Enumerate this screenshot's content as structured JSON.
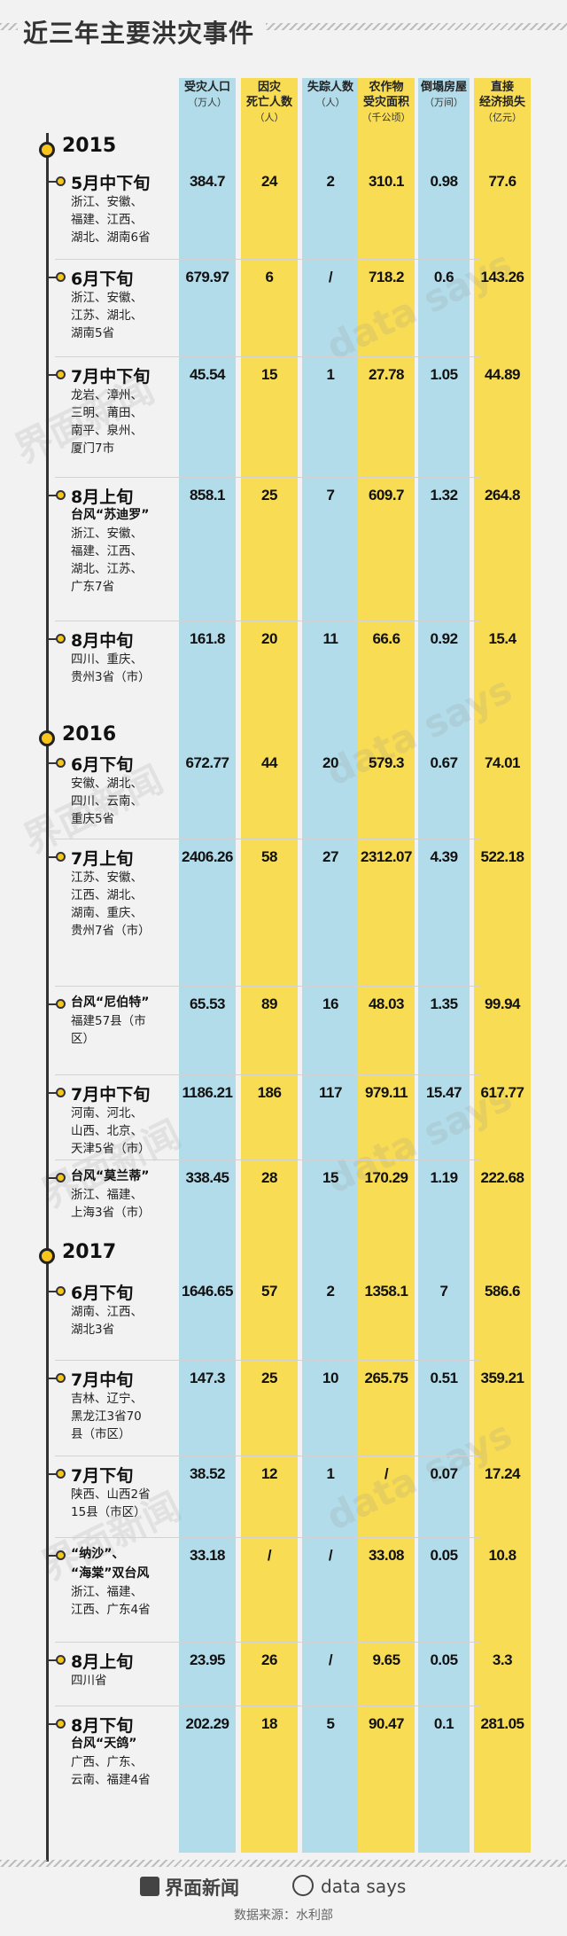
{
  "title": "近三年主要洪灾事件",
  "headers": [
    {
      "line1": "受灾人口",
      "line2": "",
      "unit": "（万人）"
    },
    {
      "line1": "因灾",
      "line2": "死亡人数",
      "unit": "（人）"
    },
    {
      "line1": "失踪人数",
      "line2": "",
      "unit": "（人）"
    },
    {
      "line1": "农作物",
      "line2": "受灾面积",
      "unit": "（千公顷）"
    },
    {
      "line1": "倒塌房屋",
      "line2": "",
      "unit": "（万间）"
    },
    {
      "line1": "直接",
      "line2": "经济损失",
      "unit": "（亿元）"
    }
  ],
  "years": [
    "2015",
    "2016",
    "2017"
  ],
  "events": [
    {
      "year": "2015",
      "title": "5月中下旬",
      "subtitle": "",
      "region": "浙江、安徽、\n福建、江西、\n湖北、湖南6省",
      "values": [
        "384.7",
        "24",
        "2",
        "310.1",
        "0.98",
        "77.6"
      ]
    },
    {
      "year": "2015",
      "title": "6月下旬",
      "subtitle": "",
      "region": "浙江、安徽、\n江苏、湖北、\n湖南5省",
      "values": [
        "679.97",
        "6",
        "/",
        "718.2",
        "0.6",
        "143.26"
      ]
    },
    {
      "year": "2015",
      "title": "7月中下旬",
      "subtitle": "",
      "region": "龙岩、漳州、\n三明、莆田、\n南平、泉州、\n厦门7市",
      "values": [
        "45.54",
        "15",
        "1",
        "27.78",
        "1.05",
        "44.89"
      ]
    },
    {
      "year": "2015",
      "title": "8月上旬",
      "subtitle": "台风“苏迪罗”",
      "region": "浙江、安徽、\n福建、江西、\n湖北、江苏、\n广东7省",
      "values": [
        "858.1",
        "25",
        "7",
        "609.7",
        "1.32",
        "264.8"
      ]
    },
    {
      "year": "2015",
      "title": "8月中旬",
      "subtitle": "",
      "region": "四川、重庆、\n贵州3省（市）",
      "values": [
        "161.8",
        "20",
        "11",
        "66.6",
        "0.92",
        "15.4"
      ]
    },
    {
      "year": "2016",
      "title": "6月下旬",
      "subtitle": "",
      "region": "安徽、湖北、\n四川、云南、\n重庆5省",
      "values": [
        "672.77",
        "44",
        "20",
        "579.3",
        "0.67",
        "74.01"
      ]
    },
    {
      "year": "2016",
      "title": "7月上旬",
      "subtitle": "",
      "region": "江苏、安徽、\n江西、湖北、\n湖南、重庆、\n贵州7省（市）",
      "values": [
        "2406.26",
        "58",
        "27",
        "2312.07",
        "4.39",
        "522.18"
      ]
    },
    {
      "year": "2016",
      "title": "",
      "subtitle": "台风“尼伯特”",
      "region": "福建57县（市\n区）",
      "values": [
        "65.53",
        "89",
        "16",
        "48.03",
        "1.35",
        "99.94"
      ]
    },
    {
      "year": "2016",
      "title": "7月中下旬",
      "subtitle": "",
      "region": "河南、河北、\n山西、北京、\n天津5省（市）",
      "values": [
        "1186.21",
        "186",
        "117",
        "979.11",
        "15.47",
        "617.77"
      ]
    },
    {
      "year": "2016",
      "title": "",
      "subtitle": "台风“莫兰蒂”",
      "region": "浙江、福建、\n上海3省（市）",
      "values": [
        "338.45",
        "28",
        "15",
        "170.29",
        "1.19",
        "222.68"
      ]
    },
    {
      "year": "2017",
      "title": "6月下旬",
      "subtitle": "",
      "region": "湖南、江西、\n湖北3省",
      "values": [
        "1646.65",
        "57",
        "2",
        "1358.1",
        "7",
        "586.6"
      ]
    },
    {
      "year": "2017",
      "title": "7月中旬",
      "subtitle": "",
      "region": "吉林、辽宁、\n黑龙江3省70\n县（市区）",
      "values": [
        "147.3",
        "25",
        "10",
        "265.75",
        "0.51",
        "359.21"
      ]
    },
    {
      "year": "2017",
      "title": "7月下旬",
      "subtitle": "",
      "region": "陕西、山西2省\n15县（市区）",
      "values": [
        "38.52",
        "12",
        "1",
        "/",
        "0.07",
        "17.24"
      ]
    },
    {
      "year": "2017",
      "title": "",
      "subtitle": "“纳沙”、\n“海棠”双台风",
      "region": "浙江、福建、\n江西、广东4省",
      "values": [
        "33.18",
        "/",
        "/",
        "33.08",
        "0.05",
        "10.8"
      ]
    },
    {
      "year": "2017",
      "title": "8月上旬",
      "subtitle": "",
      "region": "四川省",
      "values": [
        "23.95",
        "26",
        "/",
        "9.65",
        "0.05",
        "3.3"
      ]
    },
    {
      "year": "2017",
      "title": "8月下旬",
      "subtitle": "台风“天鸽”",
      "region": "广西、广东、\n云南、福建4省",
      "values": [
        "202.29",
        "18",
        "5",
        "90.47",
        "0.1",
        "281.05"
      ]
    }
  ],
  "watermark_logo": "界面新闻",
  "watermark_ds": "data says",
  "footer": {
    "logo1": "界面新闻",
    "logo2": "data says",
    "source": "数据来源：水利部"
  },
  "colors": {
    "blue_column": "#b3dcea",
    "yellow_column": "#f8dc53",
    "dot": "#f8c51c",
    "line": "#333333"
  },
  "chart_data": {
    "type": "table",
    "title": "近三年主要洪灾事件",
    "columns": [
      "受灾人口（万人）",
      "因灾死亡人数（人）",
      "失踪人数（人）",
      "农作物受灾面积（千公顷）",
      "倒塌房屋（万间）",
      "直接经济损失（亿元）"
    ],
    "rows": [
      {
        "year": "2015",
        "label": "5月中下旬",
        "values": [
          384.7,
          24,
          2,
          310.1,
          0.98,
          77.6
        ]
      },
      {
        "year": "2015",
        "label": "6月下旬",
        "values": [
          679.97,
          6,
          null,
          718.2,
          0.6,
          143.26
        ]
      },
      {
        "year": "2015",
        "label": "7月中下旬",
        "values": [
          45.54,
          15,
          1,
          27.78,
          1.05,
          44.89
        ]
      },
      {
        "year": "2015",
        "label": "8月上旬 台风“苏迪罗”",
        "values": [
          858.1,
          25,
          7,
          609.7,
          1.32,
          264.8
        ]
      },
      {
        "year": "2015",
        "label": "8月中旬",
        "values": [
          161.8,
          20,
          11,
          66.6,
          0.92,
          15.4
        ]
      },
      {
        "year": "2016",
        "label": "6月下旬",
        "values": [
          672.77,
          44,
          20,
          579.3,
          0.67,
          74.01
        ]
      },
      {
        "year": "2016",
        "label": "7月上旬",
        "values": [
          2406.26,
          58,
          27,
          2312.07,
          4.39,
          522.18
        ]
      },
      {
        "year": "2016",
        "label": "台风“尼伯特”",
        "values": [
          65.53,
          89,
          16,
          48.03,
          1.35,
          99.94
        ]
      },
      {
        "year": "2016",
        "label": "7月中下旬",
        "values": [
          1186.21,
          186,
          117,
          979.11,
          15.47,
          617.77
        ]
      },
      {
        "year": "2016",
        "label": "台风“莫兰蒂”",
        "values": [
          338.45,
          28,
          15,
          170.29,
          1.19,
          222.68
        ]
      },
      {
        "year": "2017",
        "label": "6月下旬",
        "values": [
          1646.65,
          57,
          2,
          1358.1,
          7,
          586.6
        ]
      },
      {
        "year": "2017",
        "label": "7月中旬",
        "values": [
          147.3,
          25,
          10,
          265.75,
          0.51,
          359.21
        ]
      },
      {
        "year": "2017",
        "label": "7月下旬",
        "values": [
          38.52,
          12,
          1,
          null,
          0.07,
          17.24
        ]
      },
      {
        "year": "2017",
        "label": "“纳沙”、“海棠”双台风",
        "values": [
          33.18,
          null,
          null,
          33.08,
          0.05,
          10.8
        ]
      },
      {
        "year": "2017",
        "label": "8月上旬",
        "values": [
          23.95,
          26,
          null,
          9.65,
          0.05,
          3.3
        ]
      },
      {
        "year": "2017",
        "label": "8月下旬 台风“天鸽”",
        "values": [
          202.29,
          18,
          5,
          90.47,
          0.1,
          281.05
        ]
      }
    ]
  }
}
